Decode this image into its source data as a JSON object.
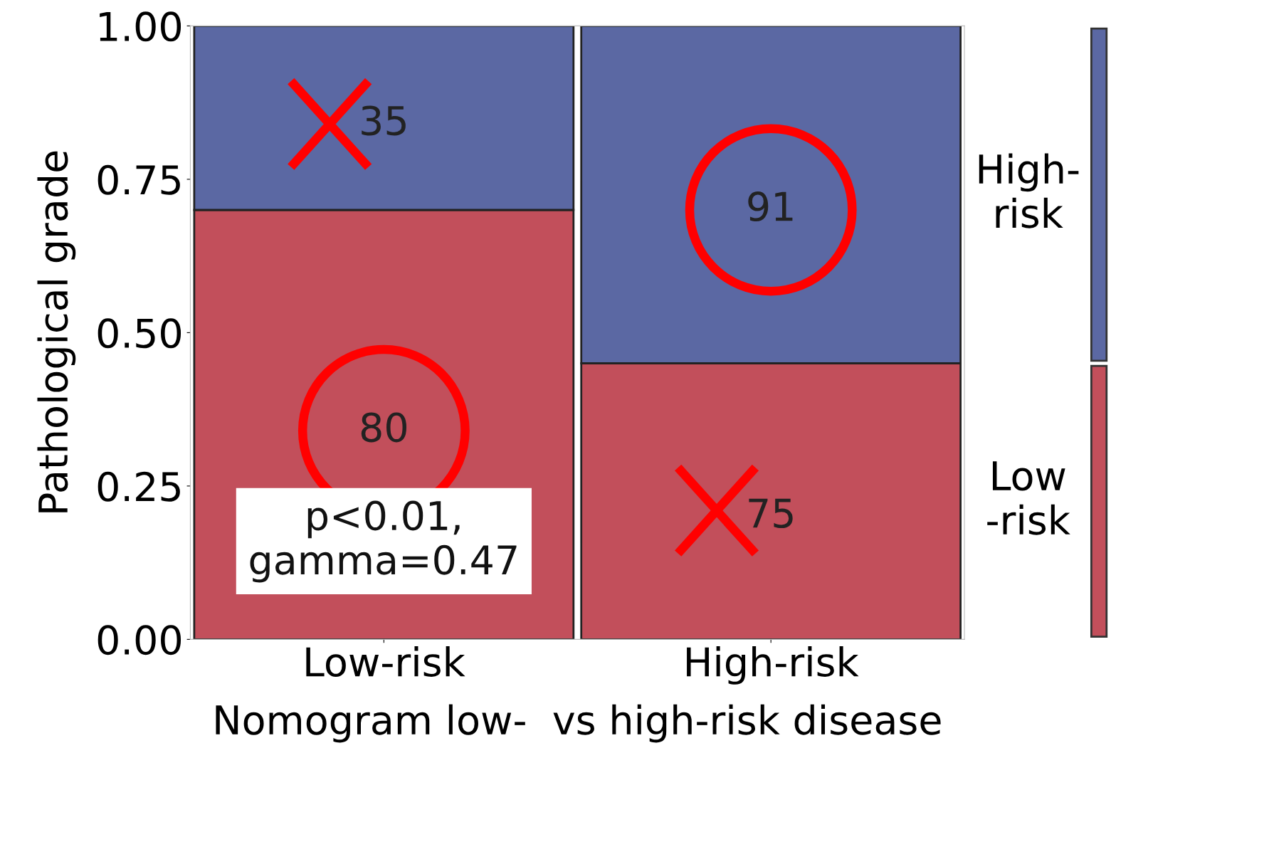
{
  "chart_data": {
    "type": "bar",
    "stacked": true,
    "xlabel": "Nomogram low-  vs high-risk disease",
    "ylabel": "Pathological grade",
    "categories": [
      "Low-risk",
      "High-risk"
    ],
    "series": [
      {
        "name": "Low\n-risk",
        "color": "#c24f5b",
        "values": [
          0.7,
          0.45
        ]
      },
      {
        "name": "High-\nrisk",
        "color": "#5b68a3",
        "values": [
          0.3,
          0.55
        ]
      }
    ],
    "ylim": [
      0,
      1
    ],
    "yticks": [
      {
        "value": 0,
        "label": "0.00"
      },
      {
        "value": 0.25,
        "label": "0.25"
      },
      {
        "value": 0.5,
        "label": "0.50"
      },
      {
        "value": 0.75,
        "label": "0.75"
      },
      {
        "value": 1,
        "label": "1.00"
      }
    ],
    "annotations": [
      "35",
      "80",
      "91",
      "75",
      "p<0.01,\ngamma=0.47"
    ],
    "legend": "right",
    "grid": false
  }
}
